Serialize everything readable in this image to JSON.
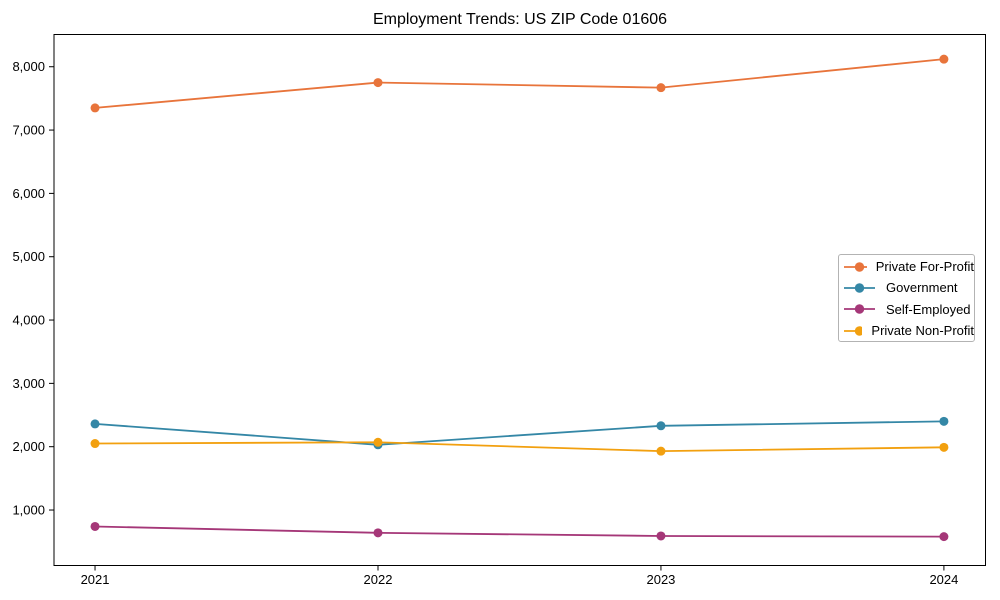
{
  "chart_data": {
    "type": "line",
    "title": "Employment Trends: US ZIP Code 01606",
    "xlabel": "",
    "ylabel": "",
    "grid": false,
    "legend_position": "center-right",
    "x": [
      2021,
      2022,
      2023,
      2024
    ],
    "x_tick_labels": [
      "2021",
      "2022",
      "2023",
      "2024"
    ],
    "y_ticks": [
      1000,
      2000,
      3000,
      4000,
      5000,
      6000,
      7000,
      8000
    ],
    "y_tick_labels": [
      "1,000",
      "2,000",
      "3,000",
      "4,000",
      "5,000",
      "6,000",
      "7,000",
      "8,000"
    ],
    "xlim": [
      2020.855,
      2024.147
    ],
    "ylim": [
      124,
      8509
    ],
    "series": [
      {
        "name": "Private For-Profit",
        "color": "#e8743b",
        "values": [
          7350,
          7750,
          7670,
          8120
        ]
      },
      {
        "name": "Government",
        "color": "#3487a6",
        "values": [
          2360,
          2030,
          2330,
          2400
        ]
      },
      {
        "name": "Self-Employed",
        "color": "#a53778",
        "values": [
          740,
          640,
          590,
          580
        ]
      },
      {
        "name": "Private Non-Profit",
        "color": "#f2a00f",
        "values": [
          2050,
          2070,
          1930,
          1990
        ]
      }
    ]
  }
}
